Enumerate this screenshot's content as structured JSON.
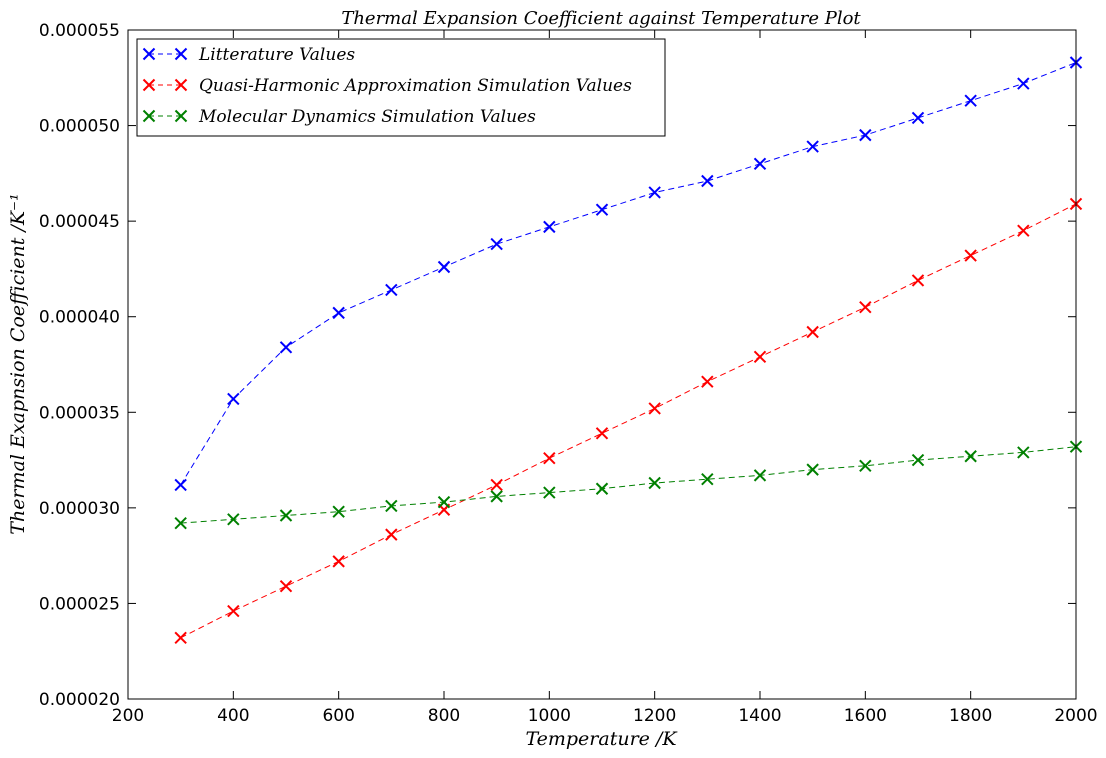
{
  "chart_data": {
    "type": "line",
    "title": "Thermal Expansion Coefficient against Temperature Plot",
    "xlabel": "Temperature /K",
    "ylabel": "Thermal Exapnsion Coefficient /K⁻¹",
    "xlim": [
      200,
      2000
    ],
    "ylim": [
      2e-05,
      5.5e-05
    ],
    "xticks": [
      "200",
      "400",
      "600",
      "800",
      "1000",
      "1200",
      "1400",
      "1600",
      "1800",
      "2000"
    ],
    "yticks": [
      "0.000020",
      "0.000025",
      "0.000030",
      "0.000035",
      "0.000040",
      "0.000045",
      "0.000050",
      "0.000055"
    ],
    "grid": false,
    "legend_position": "top-left",
    "x": [
      300,
      400,
      500,
      600,
      700,
      800,
      900,
      1000,
      1100,
      1200,
      1300,
      1400,
      1500,
      1600,
      1700,
      1800,
      1900,
      2000
    ],
    "series": [
      {
        "name": "Litterature Values",
        "color": "#0000ff",
        "marker": "x",
        "linestyle": "dashed",
        "values": [
          3.12e-05,
          3.57e-05,
          3.84e-05,
          4.02e-05,
          4.14e-05,
          4.26e-05,
          4.38e-05,
          4.47e-05,
          4.56e-05,
          4.65e-05,
          4.71e-05,
          4.8e-05,
          4.89e-05,
          4.95e-05,
          5.04e-05,
          5.13e-05,
          5.22e-05,
          5.33e-05
        ]
      },
      {
        "name": "Quasi-Harmonic Approximation Simulation Values",
        "color": "#ff0000",
        "marker": "x",
        "linestyle": "dashed",
        "values": [
          2.32e-05,
          2.46e-05,
          2.59e-05,
          2.72e-05,
          2.86e-05,
          2.99e-05,
          3.12e-05,
          3.26e-05,
          3.39e-05,
          3.52e-05,
          3.66e-05,
          3.79e-05,
          3.92e-05,
          4.05e-05,
          4.19e-05,
          4.32e-05,
          4.45e-05,
          4.59e-05
        ]
      },
      {
        "name": "Molecular Dynamics Simulation Values",
        "color": "#008000",
        "marker": "x",
        "linestyle": "dashed",
        "values": [
          2.92e-05,
          2.94e-05,
          2.96e-05,
          2.98e-05,
          3.01e-05,
          3.03e-05,
          3.06e-05,
          3.08e-05,
          3.1e-05,
          3.13e-05,
          3.15e-05,
          3.17e-05,
          3.2e-05,
          3.22e-05,
          3.25e-05,
          3.27e-05,
          3.29e-05,
          3.32e-05
        ]
      }
    ]
  }
}
